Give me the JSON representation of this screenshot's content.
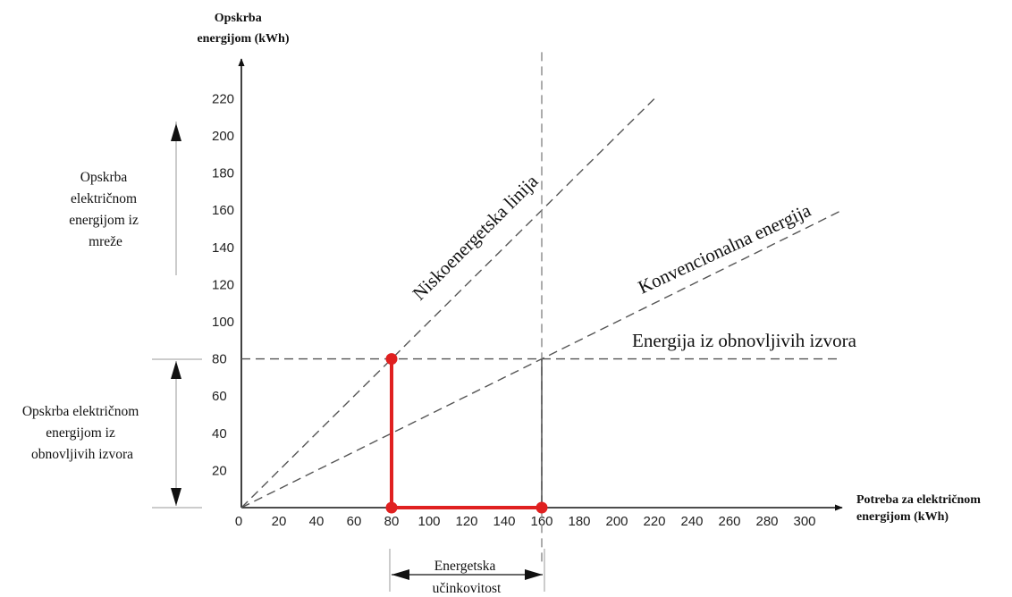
{
  "chart_data": {
    "type": "line",
    "ylabel_lines": [
      "Opskrba",
      "energijom (kWh)"
    ],
    "xlabel_lines": [
      "Potreba za električnom",
      "energijom (kWh)"
    ],
    "x_ticks": [
      0,
      20,
      40,
      60,
      80,
      100,
      120,
      140,
      160,
      180,
      200,
      220,
      240,
      260,
      280,
      300
    ],
    "y_ticks": [
      20,
      40,
      60,
      80,
      100,
      120,
      140,
      160,
      180,
      200,
      220
    ],
    "xlim": [
      0,
      320
    ],
    "ylim": [
      0,
      230
    ],
    "grid": false,
    "series": [
      {
        "name": "Niskoenergetska linija",
        "style": "dashed",
        "x": [
          0,
          220
        ],
        "y": [
          0,
          220
        ]
      },
      {
        "name": "Konvencionalna energija",
        "style": "dashed",
        "x": [
          0,
          320
        ],
        "y": [
          0,
          160
        ]
      },
      {
        "name": "Energija iz obnovljivih izvora",
        "style": "dashed",
        "x": [
          0,
          320
        ],
        "y": [
          80,
          80
        ]
      }
    ],
    "reference_lines": [
      {
        "orientation": "vertical",
        "x": 160,
        "style": "dashed",
        "y_range": [
          -30,
          245
        ]
      },
      {
        "orientation": "vertical",
        "x": 160,
        "style": "solid",
        "y_range": [
          0,
          80
        ]
      }
    ],
    "highlight": {
      "color": "#e02020",
      "points": [
        [
          80,
          80
        ],
        [
          80,
          0
        ],
        [
          160,
          0
        ]
      ],
      "path": [
        [
          80,
          80
        ],
        [
          80,
          0
        ],
        [
          160,
          0
        ]
      ]
    },
    "annotations": {
      "top_range_lines": [
        "Opskrba",
        "električnom",
        "energijom iz",
        "mreže"
      ],
      "bottom_range_lines": [
        "Opskrba električnom",
        "energijom iz",
        "obnovljivih izvora"
      ],
      "efficiency_lines": [
        "Energetska",
        "učinkovitost"
      ],
      "efficiency_range": [
        80,
        160
      ]
    }
  }
}
